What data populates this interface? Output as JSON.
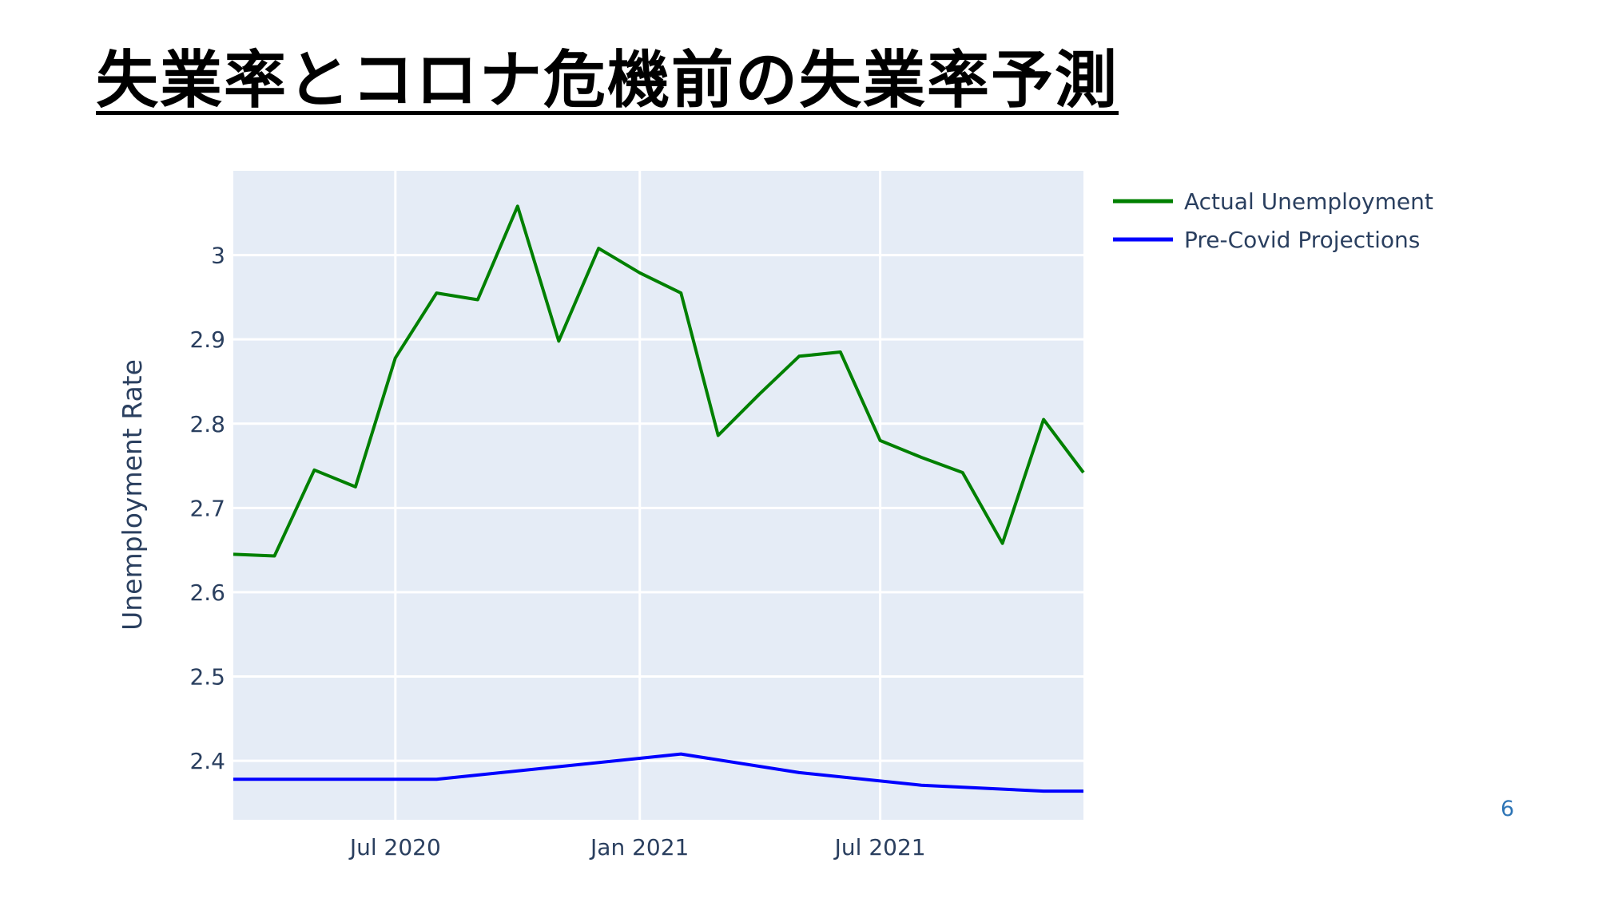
{
  "slide": {
    "title": "失業率とコロナ危機前の失業率予測",
    "page_number": "6"
  },
  "chart_data": {
    "type": "line",
    "title": "",
    "xlabel": "",
    "ylabel": "Unemployment Rate",
    "x_tick_labels": [
      "Jul 2020",
      "Jan 2021",
      "Jul 2021"
    ],
    "x_tick_dates": [
      "2020-07-01",
      "2021-01-01",
      "2021-07-01"
    ],
    "y_ticks": [
      2.4,
      2.5,
      2.6,
      2.7,
      2.8,
      2.9,
      3
    ],
    "y_tick_labels": [
      "2.4",
      "2.5",
      "2.6",
      "2.7",
      "2.8",
      "2.9",
      "3"
    ],
    "xlim": [
      "2020-03-01",
      "2021-12-01"
    ],
    "ylim": [
      2.33,
      3.1
    ],
    "grid": true,
    "legend_position": "top-right, outside plot",
    "plot_background": "#e5ecf6",
    "series": [
      {
        "name": "Actual Unemployment",
        "color": "#008000",
        "x": [
          "2020-03-01",
          "2020-04-01",
          "2020-05-01",
          "2020-06-01",
          "2020-07-01",
          "2020-08-01",
          "2020-09-01",
          "2020-10-01",
          "2020-11-01",
          "2020-12-01",
          "2021-01-01",
          "2021-02-01",
          "2021-03-01",
          "2021-04-01",
          "2021-05-01",
          "2021-06-01",
          "2021-07-01",
          "2021-08-01",
          "2021-09-01",
          "2021-10-01",
          "2021-11-01",
          "2021-12-01"
        ],
        "y": [
          2.645,
          2.643,
          2.745,
          2.725,
          2.878,
          2.955,
          2.947,
          3.058,
          2.898,
          3.008,
          2.979,
          2.955,
          2.786,
          2.835,
          2.88,
          2.885,
          2.78,
          2.76,
          2.742,
          2.658,
          2.805,
          2.742
        ]
      },
      {
        "name": "Pre-Covid Projections",
        "color": "#0000ff",
        "x": [
          "2020-03-01",
          "2020-08-01",
          "2021-02-01",
          "2021-05-01",
          "2021-08-01",
          "2021-11-01",
          "2021-12-01"
        ],
        "y": [
          2.378,
          2.378,
          2.408,
          2.386,
          2.371,
          2.364,
          2.364
        ]
      }
    ]
  }
}
